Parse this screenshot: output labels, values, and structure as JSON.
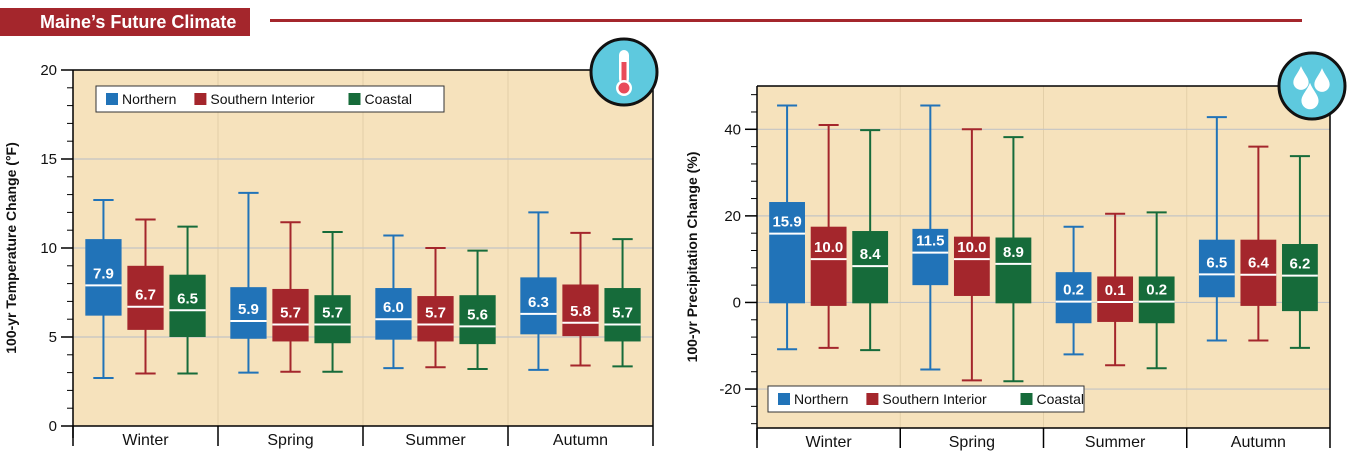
{
  "banner": {
    "title": "Maine’s Future Climate"
  },
  "colors": {
    "northern": "#2173b8",
    "southern_interior": "#a4262c",
    "coastal": "#166b3a",
    "plot_bg": "#f6e2bc",
    "grid": "#c4c4c4",
    "icon_bg": "#5ec9de",
    "banner": "#a4262c"
  },
  "icons": {
    "temperature": "thermometer-icon",
    "precipitation": "raindrops-icon"
  },
  "chart_data": [
    {
      "type": "boxplot",
      "title": "",
      "xlabel": "",
      "ylabel": "100-yr Temperature Change (°F)",
      "ylim": [
        0,
        20
      ],
      "yticks": [
        0,
        5,
        10,
        15,
        20
      ],
      "categories": [
        "Winter",
        "Spring",
        "Summer",
        "Autumn"
      ],
      "grid": true,
      "legend_position": "top-left",
      "series": [
        {
          "name": "Northern",
          "key": "northern",
          "median": [
            7.9,
            5.9,
            6.0,
            6.3
          ],
          "q1": [
            6.2,
            4.9,
            4.85,
            5.15
          ],
          "q3": [
            10.5,
            7.8,
            7.75,
            8.35
          ],
          "min": [
            2.7,
            3.0,
            3.25,
            3.15
          ],
          "max": [
            12.7,
            13.1,
            10.7,
            12.0
          ]
        },
        {
          "name": "Southern Interior",
          "key": "southern_interior",
          "median": [
            6.7,
            5.7,
            5.7,
            5.8
          ],
          "q1": [
            5.4,
            4.75,
            4.75,
            5.05
          ],
          "q3": [
            9.0,
            7.7,
            7.3,
            7.95
          ],
          "min": [
            2.95,
            3.05,
            3.3,
            3.4
          ],
          "max": [
            11.6,
            11.45,
            10.0,
            10.85
          ]
        },
        {
          "name": "Coastal",
          "key": "coastal",
          "median": [
            6.5,
            5.7,
            5.6,
            5.7
          ],
          "q1": [
            5.0,
            4.65,
            4.6,
            4.75
          ],
          "q3": [
            8.5,
            7.35,
            7.35,
            7.75
          ],
          "min": [
            2.95,
            3.05,
            3.2,
            3.35
          ],
          "max": [
            11.2,
            10.9,
            9.85,
            10.5
          ]
        }
      ]
    },
    {
      "type": "boxplot",
      "title": "",
      "xlabel": "",
      "ylabel": "100-yr Precipitation Change (%)",
      "ylim": [
        -29,
        50
      ],
      "yticks": [
        -20,
        0,
        20,
        40
      ],
      "categories": [
        "Winter",
        "Spring",
        "Summer",
        "Autumn"
      ],
      "grid": true,
      "legend_position": "bottom-left",
      "series": [
        {
          "name": "Northern",
          "key": "northern",
          "median": [
            15.9,
            11.5,
            0.2,
            6.5
          ],
          "q1": [
            -0.2,
            4.0,
            -4.8,
            1.2
          ],
          "q3": [
            23.2,
            17.0,
            7.0,
            14.5
          ],
          "min": [
            -10.8,
            -15.5,
            -12.0,
            -8.8
          ],
          "max": [
            45.5,
            45.5,
            17.5,
            42.8
          ]
        },
        {
          "name": "Southern Interior",
          "key": "southern_interior",
          "median": [
            10.0,
            10.0,
            0.1,
            6.4
          ],
          "q1": [
            -0.8,
            1.5,
            -4.5,
            -0.8
          ],
          "q3": [
            17.5,
            15.2,
            6.0,
            14.5
          ],
          "min": [
            -10.5,
            -18.0,
            -14.5,
            -8.8
          ],
          "max": [
            41.0,
            40.0,
            20.5,
            36.0
          ]
        },
        {
          "name": "Coastal",
          "key": "coastal",
          "median": [
            8.4,
            8.9,
            0.2,
            6.2
          ],
          "q1": [
            -0.2,
            -0.2,
            -4.8,
            -2.0
          ],
          "q3": [
            16.5,
            15.0,
            6.0,
            13.5
          ],
          "min": [
            -11.0,
            -18.2,
            -15.2,
            -10.5
          ],
          "max": [
            39.8,
            38.2,
            20.8,
            33.8
          ]
        }
      ]
    }
  ]
}
